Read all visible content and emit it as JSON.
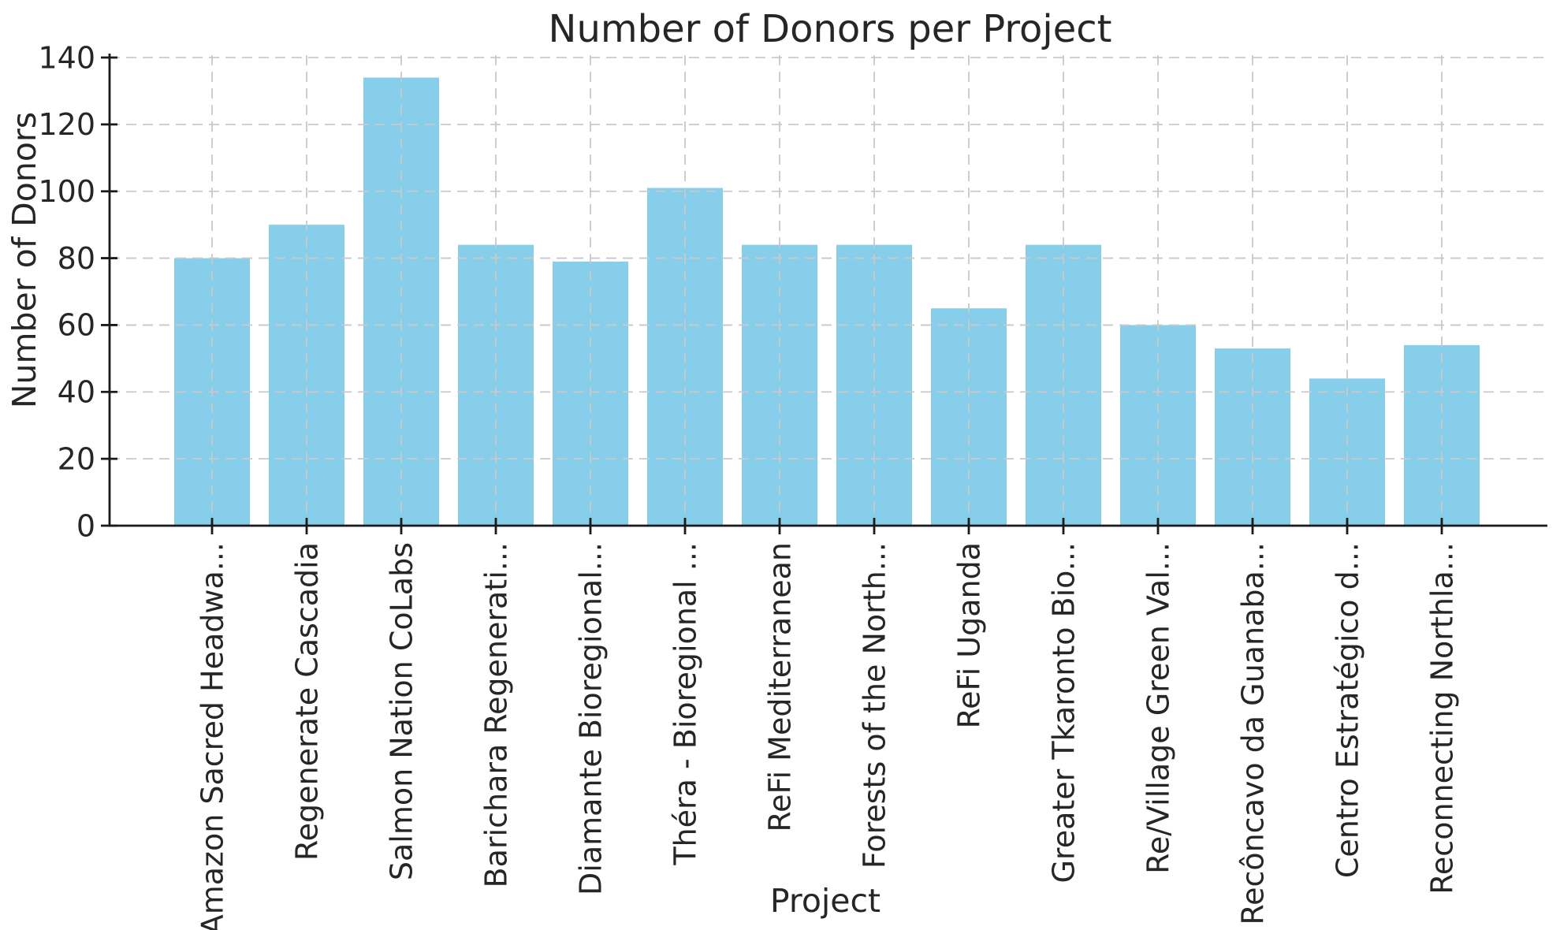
{
  "figure": {
    "background": "#ffffff"
  },
  "chart_data": {
    "type": "bar",
    "title": "Number of Donors per Project",
    "xlabel": "Project",
    "ylabel": "Number of Donors",
    "categories": [
      "Amazon Sacred Headwa...",
      "Regenerate Cascadia",
      "Salmon Nation CoLabs",
      "Barichara Regenerati...",
      "Diamante Bioregional...",
      "Théra - Bioregional ...",
      "ReFi Mediterranean",
      "Forests of the North...",
      "ReFi Uganda",
      "Greater Tkaronto Bio...",
      "Re/Village Green Val...",
      "Recôncavo da Guanaba...",
      "Centro Estratégico d...",
      "Reconnecting Northla..."
    ],
    "values": [
      80,
      90,
      134,
      84,
      79,
      101,
      84,
      84,
      65,
      84,
      60,
      53,
      44,
      54
    ],
    "ylim": [
      0,
      140
    ],
    "yticks": [
      0,
      20,
      40,
      60,
      80,
      100,
      120,
      140
    ],
    "grid": "dashed both-axes, drawn above bars",
    "legend": "none",
    "bar_color": "#87ceeb",
    "grid_color": "#c9c9c9",
    "spine_color": "#1a1a1a",
    "text_color": "#262626",
    "label_rotation_deg": 90
  }
}
